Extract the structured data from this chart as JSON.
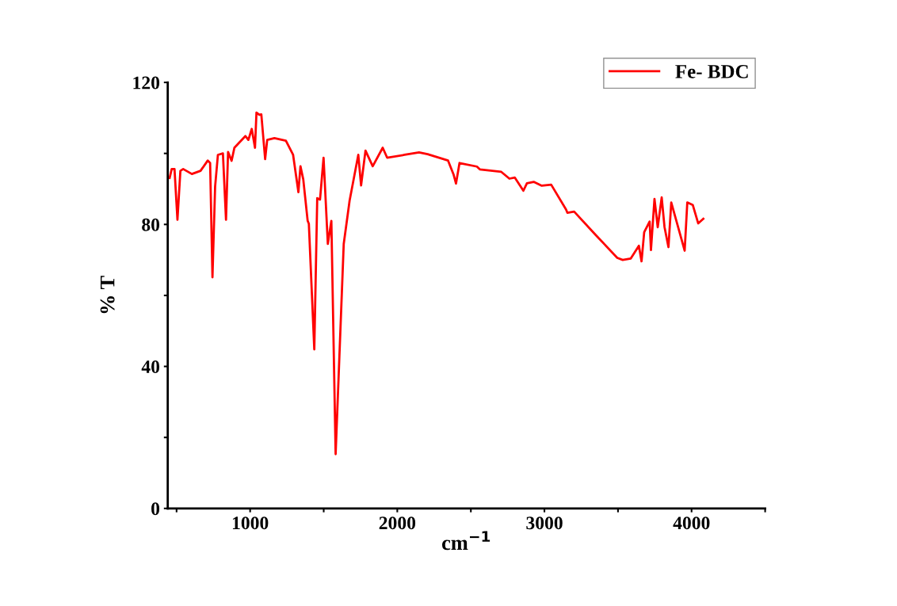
{
  "chart_data": {
    "type": "line",
    "xlabel": "cm$^{−1}$",
    "ylabel": "% T",
    "xlim": [
      440,
      4500
    ],
    "ylim": [
      0,
      120
    ],
    "xticks": [
      {
        "value": 500,
        "label": null
      },
      1000,
      {
        "value": 1500,
        "label": null
      },
      2000,
      {
        "value": 2500,
        "label": null
      },
      3000,
      {
        "value": 3500,
        "label": null
      },
      4000,
      {
        "value": 4500,
        "label": null
      }
    ],
    "yticks": [
      0,
      {
        "value": 20,
        "label": null
      },
      40,
      {
        "value": 60,
        "label": null
      },
      80,
      {
        "value": 100,
        "label": null
      },
      120
    ],
    "grid": false,
    "legend": "top right",
    "marker": "none",
    "line_style": "solid",
    "series": [
      {
        "name": "Fe- BDC",
        "color": "#ff0000",
        "x": [
          453,
          467,
          486,
          506,
          526,
          545,
          604,
          663,
          712,
          728,
          744,
          762,
          781,
          815,
          836,
          850,
          874,
          893,
          968,
          988,
          1011,
          1033,
          1043,
          1062,
          1076,
          1102,
          1116,
          1165,
          1243,
          1292,
          1328,
          1342,
          1361,
          1391,
          1399,
          1436,
          1456,
          1475,
          1499,
          1528,
          1552,
          1581,
          1636,
          1676,
          1735,
          1754,
          1784,
          1833,
          1901,
          1931,
          2049,
          2148,
          2206,
          2345,
          2383,
          2399,
          2423,
          2541,
          2561,
          2707,
          2762,
          2799,
          2857,
          2881,
          2927,
          2982,
          3046,
          3147,
          3156,
          3202,
          3349,
          3495,
          3532,
          3587,
          3642,
          3660,
          3678,
          3715,
          3724,
          3748,
          3770,
          3797,
          3816,
          3843,
          3862,
          3898,
          3953,
          3971,
          4008,
          4045,
          4080
        ],
        "values": [
          93.1,
          95.6,
          95.6,
          81.3,
          95.1,
          95.6,
          94.2,
          95.1,
          98.0,
          97.3,
          65.1,
          90.7,
          99.6,
          100,
          81.3,
          100.4,
          97.9,
          101.6,
          104.9,
          103.8,
          106.9,
          101.6,
          111.5,
          110.9,
          111,
          98.4,
          103.8,
          104.3,
          103.6,
          99.6,
          89.1,
          96.4,
          92.7,
          81,
          80.2,
          44.8,
          87.4,
          87,
          98.8,
          74.5,
          81,
          15.3,
          74.5,
          86.7,
          99.6,
          91,
          100.8,
          96.4,
          101.6,
          98.8,
          99.6,
          100.3,
          99.8,
          98,
          94,
          91.5,
          97.3,
          96.3,
          95.5,
          94.8,
          92.9,
          93.2,
          89.5,
          91.6,
          92,
          90.9,
          91.2,
          84.2,
          83.3,
          83.6,
          77,
          70.6,
          70.0,
          70.4,
          74,
          69.6,
          77.8,
          80.8,
          72.8,
          87.2,
          79.2,
          87.6,
          79.3,
          73.6,
          86.2,
          80.8,
          72.6,
          86.2,
          85.5,
          80.3,
          81.6
        ]
      }
    ]
  }
}
